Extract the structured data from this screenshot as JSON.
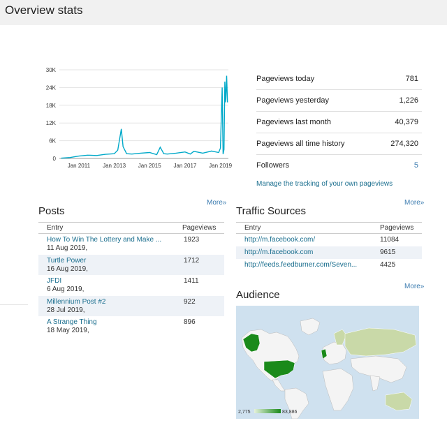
{
  "header": {
    "title": "Overview stats"
  },
  "chart_data": {
    "type": "line",
    "x": [
      2010.0,
      2010.5,
      2011.0,
      2011.5,
      2012.0,
      2012.5,
      2013.0,
      2013.2,
      2013.4,
      2013.5,
      2013.7,
      2014.0,
      2014.5,
      2015.0,
      2015.4,
      2015.6,
      2015.8,
      2016.0,
      2016.5,
      2017.0,
      2017.3,
      2017.5,
      2018.0,
      2018.5,
      2018.9,
      2019.0,
      2019.1,
      2019.15,
      2019.2,
      2019.25,
      2019.3,
      2019.35,
      2019.4
    ],
    "y": [
      100,
      300,
      800,
      1100,
      1000,
      1400,
      1600,
      2800,
      10000,
      4000,
      1600,
      1500,
      1800,
      2000,
      1300,
      3800,
      1600,
      1500,
      1800,
      2200,
      1500,
      2400,
      1800,
      2500,
      2000,
      3500,
      24000,
      1500,
      3000,
      26000,
      19000,
      28000,
      19000
    ],
    "xticks": [
      "Jan 2011",
      "Jan 2013",
      "Jan 2015",
      "Jan 2017",
      "Jan 2019"
    ],
    "xtick_values": [
      2011,
      2013,
      2015,
      2017,
      2019
    ],
    "yticks": [
      "0",
      "6K",
      "12K",
      "18K",
      "24K",
      "30K"
    ],
    "ytick_values": [
      0,
      6000,
      12000,
      18000,
      24000,
      30000
    ],
    "xlim": [
      2009.9,
      2019.45
    ],
    "ylim": [
      0,
      30000
    ],
    "grid": true,
    "title": "",
    "xlabel": "",
    "ylabel": "",
    "color": "#00a9c9"
  },
  "stats": [
    {
      "label": "Pageviews today",
      "value": "781",
      "link": false
    },
    {
      "label": "Pageviews yesterday",
      "value": "1,226",
      "link": false
    },
    {
      "label": "Pageviews last month",
      "value": "40,379",
      "link": false
    },
    {
      "label": "Pageviews all time history",
      "value": "274,320",
      "link": false
    },
    {
      "label": "Followers",
      "value": "5",
      "link": true
    }
  ],
  "manage_link": "Manage the tracking of your own pageviews",
  "more_label": "More»",
  "posts": {
    "title": "Posts",
    "col_entry": "Entry",
    "col_pageviews": "Pageviews",
    "rows": [
      {
        "title": "How To Win The Lottery and Make ...",
        "date": "11 Aug 2019,",
        "views": "1923"
      },
      {
        "title": "Turtle Power",
        "date": "16 Aug 2019,",
        "views": "1712"
      },
      {
        "title": "JFDI",
        "date": "6 Aug 2019,",
        "views": "1411"
      },
      {
        "title": "Millennium Post #2",
        "date": "28 Jul 2019,",
        "views": "922"
      },
      {
        "title": "A Strange Thing",
        "date": "18 May 2019,",
        "views": "896"
      }
    ]
  },
  "traffic": {
    "title": "Traffic Sources",
    "col_entry": "Entry",
    "col_pageviews": "Pageviews",
    "rows": [
      {
        "url": "http://m.facebook.com/",
        "views": "11084"
      },
      {
        "url": "http://m.facebook.com",
        "views": "9615"
      },
      {
        "url": "http://feeds.feedburner.com/Seven...",
        "views": "4425"
      }
    ]
  },
  "audience": {
    "title": "Audience",
    "legend_min": "2,775",
    "legend_max": "83,886",
    "colors": {
      "high": "#1a8a1a",
      "mid": "#6cbf5a",
      "low": "#c9d9a8",
      "none": "#f4f4f4",
      "water": "#cfe1ef"
    }
  }
}
